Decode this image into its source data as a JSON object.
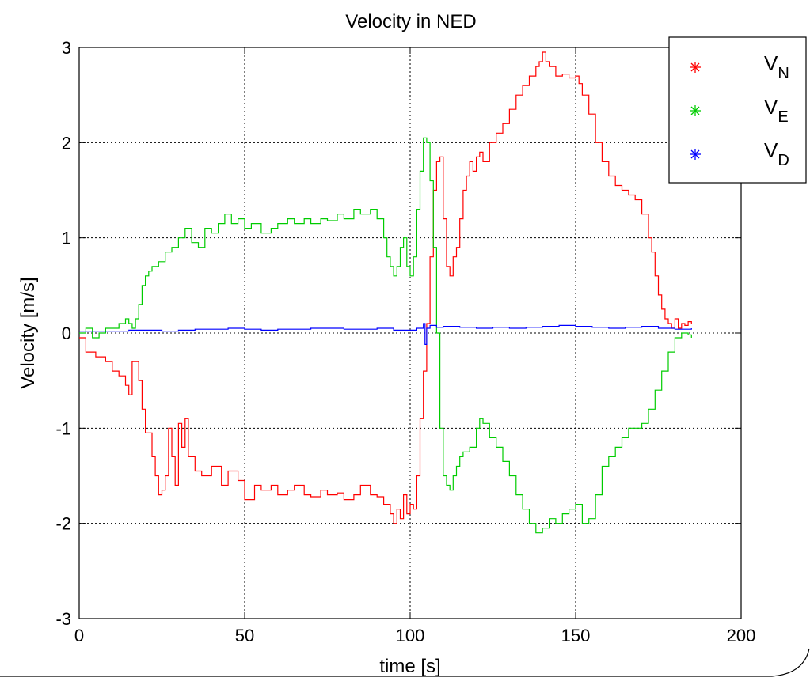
{
  "chart_data": {
    "type": "line",
    "title": "Velocity in NED",
    "xlabel": "time [s]",
    "ylabel": "Velocity [m/s]",
    "xlim": [
      0,
      200
    ],
    "ylim": [
      -3,
      3
    ],
    "xticks": [
      0,
      50,
      100,
      150,
      200
    ],
    "yticks": [
      -3,
      -2,
      -1,
      0,
      1,
      2,
      3
    ],
    "grid": true,
    "legend_placement": "top-right",
    "series": [
      {
        "name": "V_N",
        "label_main": "V",
        "label_sub": "N",
        "color": "#ff0000",
        "x": [
          0,
          2,
          5,
          8,
          10,
          12,
          14,
          15,
          16,
          18,
          19,
          20,
          22,
          23,
          24,
          25,
          26,
          27,
          28,
          29,
          30,
          31,
          32,
          33,
          35,
          37,
          40,
          43,
          45,
          48,
          50,
          53,
          55,
          58,
          60,
          63,
          65,
          68,
          70,
          73,
          75,
          78,
          80,
          83,
          85,
          88,
          90,
          92,
          94,
          95,
          96,
          97,
          98,
          99,
          100,
          101,
          102,
          103,
          104,
          105,
          106,
          107,
          108,
          109,
          110,
          111,
          112,
          113,
          114,
          115,
          116,
          117,
          118,
          119,
          120,
          121,
          122,
          124,
          126,
          128,
          130,
          132,
          134,
          136,
          138,
          139,
          140,
          141,
          142,
          144,
          146,
          148,
          150,
          151,
          152,
          154,
          156,
          158,
          160,
          162,
          164,
          166,
          168,
          170,
          172,
          173,
          174,
          175,
          176,
          177,
          178,
          179,
          180,
          181,
          182,
          183,
          184,
          185
        ],
        "y": [
          -0.05,
          -0.2,
          -0.25,
          -0.3,
          -0.4,
          -0.45,
          -0.55,
          -0.65,
          -0.3,
          -0.5,
          -0.8,
          -1.05,
          -1.3,
          -1.5,
          -1.7,
          -1.65,
          -1.5,
          -1.0,
          -1.3,
          -1.6,
          -0.95,
          -1.2,
          -0.9,
          -1.3,
          -1.45,
          -1.5,
          -1.4,
          -1.6,
          -1.45,
          -1.55,
          -1.75,
          -1.6,
          -1.65,
          -1.6,
          -1.7,
          -1.65,
          -1.6,
          -1.7,
          -1.72,
          -1.65,
          -1.7,
          -1.68,
          -1.75,
          -1.7,
          -1.6,
          -1.7,
          -1.72,
          -1.8,
          -1.9,
          -2.0,
          -1.85,
          -1.95,
          -1.7,
          -1.9,
          -1.8,
          -1.85,
          -1.5,
          -0.9,
          -0.4,
          0.1,
          0.8,
          1.5,
          1.8,
          1.85,
          1.2,
          0.7,
          0.6,
          0.8,
          0.9,
          1.2,
          1.5,
          1.65,
          1.8,
          1.7,
          1.85,
          1.9,
          1.8,
          2.0,
          2.1,
          2.2,
          2.35,
          2.5,
          2.6,
          2.7,
          2.8,
          2.85,
          2.95,
          2.85,
          2.8,
          2.7,
          2.72,
          2.68,
          2.7,
          2.62,
          2.5,
          2.3,
          2.0,
          1.8,
          1.65,
          1.55,
          1.5,
          1.45,
          1.4,
          1.25,
          1.0,
          0.85,
          0.6,
          0.4,
          0.25,
          0.15,
          0.1,
          0.05,
          0.15,
          0.05,
          0.1,
          0.08,
          0.12,
          0.1
        ]
      },
      {
        "name": "V_E",
        "label_main": "V",
        "label_sub": "E",
        "color": "#00cc00",
        "x": [
          0,
          2,
          4,
          6,
          8,
          10,
          12,
          14,
          15,
          16,
          17,
          18,
          19,
          20,
          21,
          22,
          24,
          26,
          28,
          30,
          32,
          34,
          36,
          38,
          40,
          42,
          44,
          46,
          48,
          50,
          52,
          55,
          58,
          60,
          63,
          65,
          68,
          70,
          73,
          75,
          78,
          80,
          83,
          85,
          88,
          90,
          92,
          93,
          94,
          95,
          96,
          97,
          98,
          99,
          100,
          101,
          102,
          103,
          104,
          105,
          106,
          107,
          108,
          109,
          110,
          111,
          112,
          113,
          114,
          115,
          116,
          118,
          120,
          121,
          122,
          124,
          126,
          128,
          130,
          132,
          134,
          136,
          138,
          140,
          142,
          144,
          146,
          148,
          150,
          152,
          154,
          156,
          158,
          160,
          162,
          164,
          166,
          168,
          170,
          172,
          174,
          176,
          178,
          180,
          182,
          184,
          185
        ],
        "y": [
          0.0,
          0.05,
          -0.05,
          0.0,
          0.05,
          0.05,
          0.1,
          0.15,
          0.1,
          0.05,
          0.15,
          0.3,
          0.5,
          0.6,
          0.65,
          0.7,
          0.75,
          0.85,
          0.9,
          1.0,
          1.1,
          0.95,
          0.9,
          1.1,
          1.05,
          1.15,
          1.25,
          1.15,
          1.2,
          1.1,
          1.15,
          1.05,
          1.1,
          1.15,
          1.2,
          1.15,
          1.2,
          1.15,
          1.2,
          1.18,
          1.25,
          1.2,
          1.3,
          1.25,
          1.3,
          1.2,
          1.0,
          0.8,
          0.7,
          0.6,
          0.7,
          0.9,
          1.0,
          0.7,
          0.6,
          0.8,
          1.3,
          1.7,
          2.05,
          2.0,
          1.6,
          0.9,
          0.0,
          -1.0,
          -1.5,
          -1.6,
          -1.65,
          -1.5,
          -1.4,
          -1.3,
          -1.25,
          -1.2,
          -1.0,
          -0.9,
          -0.95,
          -1.1,
          -1.2,
          -1.35,
          -1.5,
          -1.7,
          -1.85,
          -2.0,
          -2.1,
          -2.05,
          -1.95,
          -2.0,
          -1.9,
          -1.85,
          -1.8,
          -2.0,
          -1.95,
          -1.7,
          -1.4,
          -1.3,
          -1.2,
          -1.1,
          -1.0,
          -1.0,
          -0.95,
          -0.8,
          -0.6,
          -0.4,
          -0.2,
          -0.05,
          0.0,
          -0.02,
          -0.05
        ]
      },
      {
        "name": "V_D",
        "label_main": "V",
        "label_sub": "D",
        "color": "#0000ff",
        "x": [
          0,
          5,
          10,
          15,
          20,
          25,
          30,
          35,
          40,
          45,
          50,
          55,
          60,
          65,
          70,
          75,
          80,
          85,
          90,
          95,
          100,
          102,
          104,
          104.5,
          105,
          106,
          108,
          110,
          115,
          120,
          125,
          130,
          135,
          140,
          145,
          150,
          155,
          160,
          165,
          170,
          175,
          180,
          185
        ],
        "y": [
          0.02,
          0.02,
          0.02,
          0.03,
          0.03,
          0.02,
          0.03,
          0.04,
          0.04,
          0.05,
          0.04,
          0.03,
          0.04,
          0.04,
          0.05,
          0.05,
          0.04,
          0.04,
          0.05,
          0.03,
          0.03,
          0.05,
          0.1,
          -0.12,
          0.05,
          0.08,
          0.06,
          0.07,
          0.06,
          0.05,
          0.06,
          0.05,
          0.06,
          0.07,
          0.08,
          0.07,
          0.06,
          0.05,
          0.06,
          0.07,
          0.05,
          0.04,
          0.05
        ]
      }
    ]
  }
}
